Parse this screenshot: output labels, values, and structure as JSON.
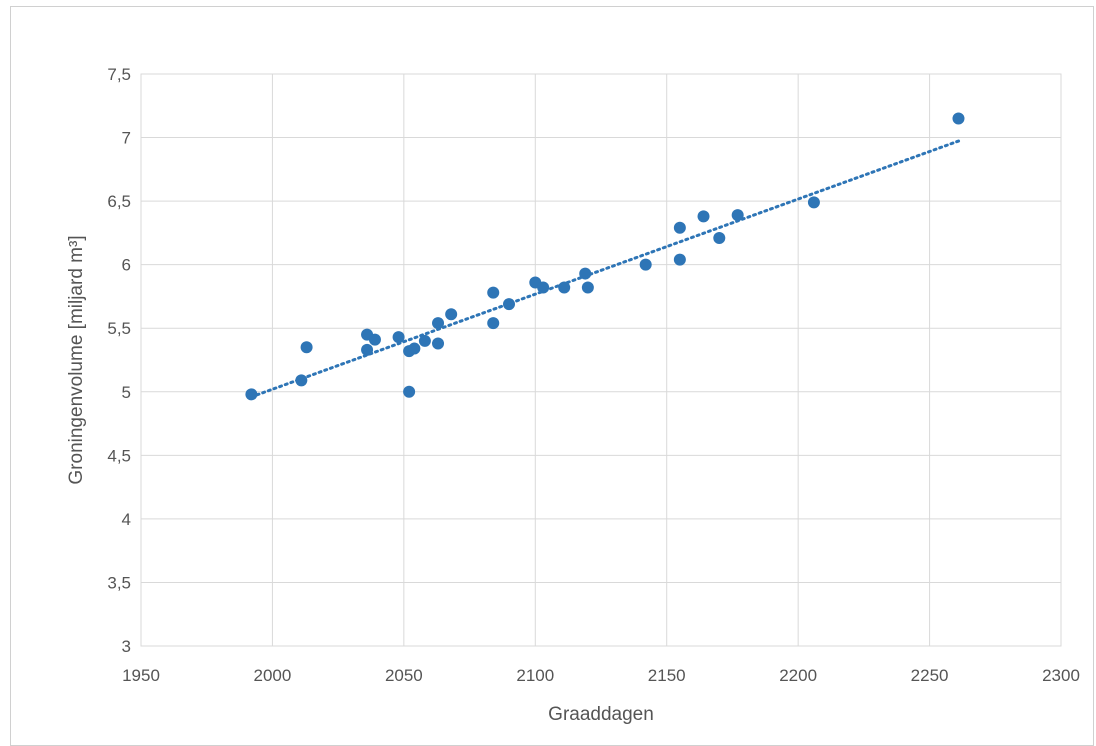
{
  "chart_data": {
    "type": "scatter",
    "title": "",
    "xlabel": "Graaddagen",
    "ylabel": "Groningenvolume [miljard m³]",
    "xlim": [
      1950,
      2300
    ],
    "ylim": [
      3,
      7.5
    ],
    "x_ticks": [
      "1950",
      "2000",
      "2050",
      "2100",
      "2150",
      "2200",
      "2250",
      "2300"
    ],
    "y_ticks": [
      "3",
      "3,5",
      "4",
      "4,5",
      "5",
      "5,5",
      "6",
      "6,5",
      "7",
      "7,5"
    ],
    "grid": true,
    "legend": "none",
    "marker_color": "#2e75b6",
    "trendline": {
      "style": "dotted",
      "color": "#2e75b6",
      "from": [
        1992,
        4.96
      ],
      "to": [
        2262,
        6.98
      ]
    },
    "points": [
      [
        1992,
        4.98
      ],
      [
        2011,
        5.09
      ],
      [
        2013,
        5.35
      ],
      [
        2036,
        5.45
      ],
      [
        2036,
        5.33
      ],
      [
        2039,
        5.41
      ],
      [
        2048,
        5.43
      ],
      [
        2052,
        5.32
      ],
      [
        2052,
        5.0
      ],
      [
        2054,
        5.34
      ],
      [
        2058,
        5.4
      ],
      [
        2063,
        5.54
      ],
      [
        2063,
        5.38
      ],
      [
        2068,
        5.61
      ],
      [
        2084,
        5.78
      ],
      [
        2084,
        5.54
      ],
      [
        2090,
        5.69
      ],
      [
        2100,
        5.86
      ],
      [
        2103,
        5.82
      ],
      [
        2111,
        5.82
      ],
      [
        2119,
        5.93
      ],
      [
        2120,
        5.82
      ],
      [
        2142,
        6.0
      ],
      [
        2155,
        6.29
      ],
      [
        2155,
        6.04
      ],
      [
        2164,
        6.38
      ],
      [
        2170,
        6.21
      ],
      [
        2177,
        6.39
      ],
      [
        2206,
        6.49
      ],
      [
        2261,
        7.15
      ]
    ]
  }
}
